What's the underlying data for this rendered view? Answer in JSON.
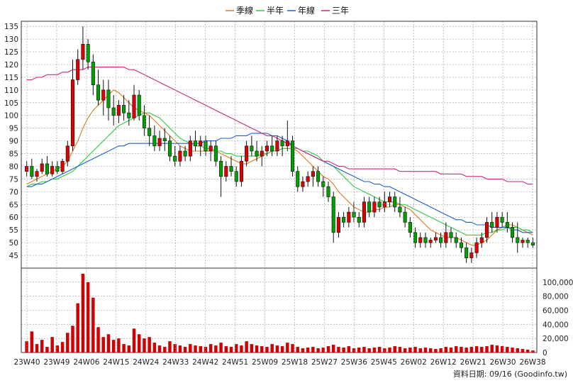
{
  "chart_data": {
    "type": "candlestick+volume",
    "legend": [
      {
        "label": "季線",
        "color": "#e07a1f"
      },
      {
        "label": "半年",
        "color": "#2ecc40"
      },
      {
        "label": "年線",
        "color": "#1f5fd0"
      },
      {
        "label": "三年",
        "color": "#d6247c"
      }
    ],
    "price_axis": {
      "min": 40,
      "max": 137,
      "ticks": [
        45,
        50,
        55,
        60,
        65,
        70,
        75,
        80,
        85,
        90,
        95,
        100,
        105,
        110,
        115,
        120,
        125,
        130,
        135
      ]
    },
    "volume_axis": {
      "min": 0,
      "max": 120000,
      "ticks": [
        0,
        20000,
        40000,
        60000,
        80000,
        100000
      ],
      "tick_labels": [
        "0",
        "20,000",
        "40,000",
        "60,000",
        "80,000",
        "100,000"
      ]
    },
    "x_labels": [
      "23W40",
      "23W49",
      "24W06",
      "24W15",
      "24W24",
      "24W33",
      "24W42",
      "24W51",
      "25W09",
      "25W18",
      "25W27",
      "25W36",
      "25W45",
      "26W02",
      "26W12",
      "26W21",
      "26W30",
      "26W38"
    ],
    "grid": true,
    "footer": "資料日期: 09/16  (Goodinfo.tw)",
    "candles": [
      [
        78,
        82,
        76,
        80
      ],
      [
        80,
        83,
        75,
        76
      ],
      [
        76,
        79,
        74,
        78
      ],
      [
        78,
        83,
        77,
        81
      ],
      [
        81,
        84,
        76,
        77
      ],
      [
        77,
        82,
        76,
        80
      ],
      [
        80,
        82,
        77,
        78
      ],
      [
        78,
        83,
        77,
        82
      ],
      [
        82,
        90,
        80,
        88
      ],
      [
        88,
        122,
        86,
        114
      ],
      [
        114,
        126,
        112,
        122
      ],
      [
        122,
        135,
        118,
        128
      ],
      [
        128,
        130,
        118,
        121
      ],
      [
        121,
        124,
        108,
        112
      ],
      [
        112,
        118,
        104,
        106
      ],
      [
        106,
        114,
        100,
        110
      ],
      [
        110,
        114,
        98,
        103
      ],
      [
        103,
        108,
        96,
        100
      ],
      [
        100,
        106,
        97,
        104
      ],
      [
        104,
        108,
        98,
        101
      ],
      [
        101,
        106,
        96,
        99
      ],
      [
        99,
        112,
        98,
        108
      ],
      [
        108,
        110,
        98,
        100
      ],
      [
        100,
        104,
        92,
        95
      ],
      [
        95,
        100,
        88,
        92
      ],
      [
        92,
        96,
        86,
        88
      ],
      [
        88,
        94,
        86,
        91
      ],
      [
        91,
        95,
        86,
        90
      ],
      [
        90,
        92,
        82,
        84
      ],
      [
        84,
        88,
        80,
        82
      ],
      [
        82,
        88,
        80,
        86
      ],
      [
        86,
        88,
        82,
        84
      ],
      [
        84,
        92,
        82,
        90
      ],
      [
        90,
        94,
        86,
        88
      ],
      [
        88,
        92,
        84,
        90
      ],
      [
        90,
        92,
        84,
        86
      ],
      [
        86,
        90,
        82,
        88
      ],
      [
        88,
        90,
        80,
        82
      ],
      [
        82,
        84,
        68,
        76
      ],
      [
        76,
        82,
        74,
        80
      ],
      [
        80,
        84,
        76,
        78
      ],
      [
        78,
        80,
        72,
        74
      ],
      [
        74,
        84,
        72,
        82
      ],
      [
        82,
        90,
        80,
        88
      ],
      [
        88,
        92,
        84,
        86
      ],
      [
        86,
        90,
        82,
        84
      ],
      [
        84,
        88,
        80,
        86
      ],
      [
        86,
        90,
        84,
        88
      ],
      [
        88,
        92,
        84,
        86
      ],
      [
        86,
        92,
        84,
        90
      ],
      [
        90,
        92,
        84,
        88
      ],
      [
        88,
        98,
        86,
        90
      ],
      [
        90,
        92,
        76,
        78
      ],
      [
        78,
        80,
        70,
        72
      ],
      [
        72,
        76,
        70,
        74
      ],
      [
        74,
        78,
        72,
        76
      ],
      [
        76,
        80,
        72,
        78
      ],
      [
        78,
        80,
        72,
        74
      ],
      [
        74,
        76,
        68,
        72
      ],
      [
        72,
        74,
        66,
        68
      ],
      [
        68,
        70,
        50,
        54
      ],
      [
        54,
        62,
        52,
        60
      ],
      [
        60,
        62,
        56,
        58
      ],
      [
        58,
        64,
        56,
        62
      ],
      [
        62,
        66,
        58,
        60
      ],
      [
        60,
        62,
        56,
        58
      ],
      [
        58,
        68,
        56,
        66
      ],
      [
        66,
        68,
        60,
        62
      ],
      [
        62,
        68,
        60,
        66
      ],
      [
        66,
        68,
        62,
        64
      ],
      [
        64,
        70,
        62,
        66
      ],
      [
        66,
        70,
        64,
        68
      ],
      [
        68,
        70,
        62,
        64
      ],
      [
        64,
        68,
        60,
        62
      ],
      [
        62,
        64,
        56,
        58
      ],
      [
        58,
        60,
        52,
        54
      ],
      [
        54,
        56,
        48,
        50
      ],
      [
        50,
        54,
        48,
        52
      ],
      [
        52,
        54,
        48,
        50
      ],
      [
        50,
        52,
        48,
        51
      ],
      [
        51,
        54,
        50,
        52
      ],
      [
        52,
        54,
        48,
        50
      ],
      [
        50,
        58,
        48,
        54
      ],
      [
        54,
        56,
        50,
        52
      ],
      [
        52,
        54,
        48,
        50
      ],
      [
        50,
        52,
        46,
        48
      ],
      [
        48,
        50,
        42,
        44
      ],
      [
        44,
        48,
        42,
        46
      ],
      [
        46,
        52,
        44,
        50
      ],
      [
        50,
        54,
        48,
        52
      ],
      [
        52,
        60,
        50,
        58
      ],
      [
        58,
        62,
        54,
        56
      ],
      [
        56,
        62,
        54,
        60
      ],
      [
        60,
        62,
        56,
        58
      ],
      [
        58,
        62,
        54,
        56
      ],
      [
        56,
        58,
        50,
        52
      ],
      [
        52,
        58,
        46,
        50
      ],
      [
        50,
        52,
        48,
        51
      ],
      [
        51,
        52,
        48,
        50
      ],
      [
        50,
        52,
        48,
        49
      ]
    ],
    "volumes": [
      16000,
      30000,
      12000,
      18000,
      8000,
      22000,
      10000,
      15000,
      28000,
      38000,
      70000,
      112000,
      100000,
      78000,
      36000,
      22000,
      26000,
      18000,
      20000,
      12000,
      10000,
      34000,
      26000,
      20000,
      22000,
      14000,
      10000,
      8000,
      16000,
      12000,
      10000,
      8000,
      12000,
      10000,
      9000,
      8000,
      12000,
      10000,
      14000,
      9000,
      8000,
      12000,
      10000,
      16000,
      12000,
      10000,
      9000,
      8000,
      12000,
      10000,
      9000,
      14000,
      12000,
      8000,
      6000,
      7000,
      8000,
      6000,
      7000,
      9000,
      11000,
      8000,
      7000,
      9000,
      6000,
      7000,
      8000,
      6000,
      7000,
      8000,
      6000,
      7000,
      9000,
      8000,
      6000,
      7000,
      8000,
      6000,
      7000,
      6000,
      5000,
      6000,
      8000,
      7000,
      9000,
      8000,
      7000,
      8000,
      9000,
      8000,
      9000,
      11000,
      10000,
      9000,
      8000,
      7000,
      6000,
      5000,
      4000,
      3000
    ],
    "series": [
      {
        "name": "季線",
        "values": [
          73,
          74,
          75,
          76,
          77,
          78,
          79,
          80,
          82,
          86,
          90,
          95,
          99,
          102,
          104,
          106,
          108,
          110,
          109,
          107,
          105,
          103,
          102,
          101,
          100,
          98,
          96,
          94,
          92,
          90,
          88,
          87,
          86,
          86,
          86,
          86,
          86,
          86,
          85,
          84,
          83,
          82,
          81,
          81,
          82,
          83,
          84,
          85,
          86,
          86,
          87,
          87,
          87,
          86,
          84,
          82,
          80,
          78,
          76,
          75,
          73,
          70,
          68,
          66,
          64,
          63,
          62,
          62,
          63,
          63,
          64,
          64,
          65,
          65,
          64,
          63,
          61,
          59,
          57,
          55,
          54,
          53,
          52,
          52,
          52,
          51,
          50,
          49,
          49,
          50,
          51,
          53,
          55,
          56,
          57,
          57,
          56,
          55,
          54,
          53
        ]
      },
      {
        "name": "半年",
        "values": [
          72,
          73,
          73,
          74,
          74,
          75,
          75,
          76,
          77,
          78,
          80,
          82,
          84,
          86,
          88,
          90,
          92,
          94,
          96,
          97,
          98,
          99,
          100,
          101,
          101,
          100,
          99,
          97,
          95,
          93,
          91,
          90,
          89,
          88,
          88,
          87,
          87,
          86,
          86,
          85,
          85,
          84,
          84,
          84,
          84,
          84,
          85,
          85,
          86,
          86,
          87,
          87,
          87,
          87,
          86,
          86,
          85,
          84,
          82,
          81,
          80,
          78,
          76,
          74,
          72,
          71,
          70,
          69,
          68,
          67,
          66,
          66,
          66,
          65,
          65,
          64,
          63,
          62,
          61,
          60,
          59,
          58,
          57,
          56,
          55,
          54,
          53,
          53,
          53,
          53,
          54,
          54,
          55,
          55,
          56,
          56,
          56,
          55,
          55,
          54
        ]
      },
      {
        "name": "年線",
        "values": [
          72,
          72,
          73,
          73,
          74,
          75,
          76,
          77,
          78,
          79,
          80,
          81,
          82,
          83,
          84,
          85,
          86,
          87,
          88,
          88,
          89,
          89,
          89,
          89,
          89,
          89,
          89,
          89,
          89,
          89,
          89,
          89,
          89,
          89,
          89,
          90,
          90,
          90,
          91,
          91,
          91,
          92,
          92,
          92,
          93,
          93,
          93,
          93,
          92,
          92,
          91,
          90,
          88,
          87,
          86,
          85,
          84,
          83,
          82,
          81,
          80,
          79,
          78,
          77,
          76,
          75,
          74,
          74,
          73,
          73,
          72,
          72,
          71,
          70,
          69,
          68,
          67,
          66,
          65,
          64,
          63,
          62,
          61,
          60,
          59,
          59,
          58,
          58,
          57,
          57,
          57,
          56,
          56,
          56,
          56,
          55,
          55,
          54,
          54,
          54
        ]
      },
      {
        "name": "三年",
        "values": [
          114,
          114,
          115,
          115,
          116,
          116,
          116,
          117,
          117,
          118,
          118,
          118,
          119,
          119,
          119,
          119,
          119,
          119,
          119,
          119,
          118,
          118,
          117,
          116,
          115,
          114,
          113,
          112,
          111,
          110,
          109,
          108,
          107,
          106,
          105,
          104,
          103,
          102,
          101,
          100,
          99,
          98,
          97,
          96,
          95,
          94,
          93,
          92,
          92,
          91,
          90,
          89,
          88,
          87,
          86,
          85,
          84,
          83,
          82,
          82,
          81,
          80,
          80,
          79,
          79,
          79,
          79,
          79,
          79,
          79,
          79,
          79,
          79,
          78,
          78,
          78,
          78,
          78,
          78,
          78,
          78,
          77,
          77,
          77,
          77,
          77,
          76,
          76,
          76,
          76,
          75,
          75,
          75,
          75,
          74,
          74,
          74,
          74,
          73,
          73
        ]
      }
    ]
  }
}
